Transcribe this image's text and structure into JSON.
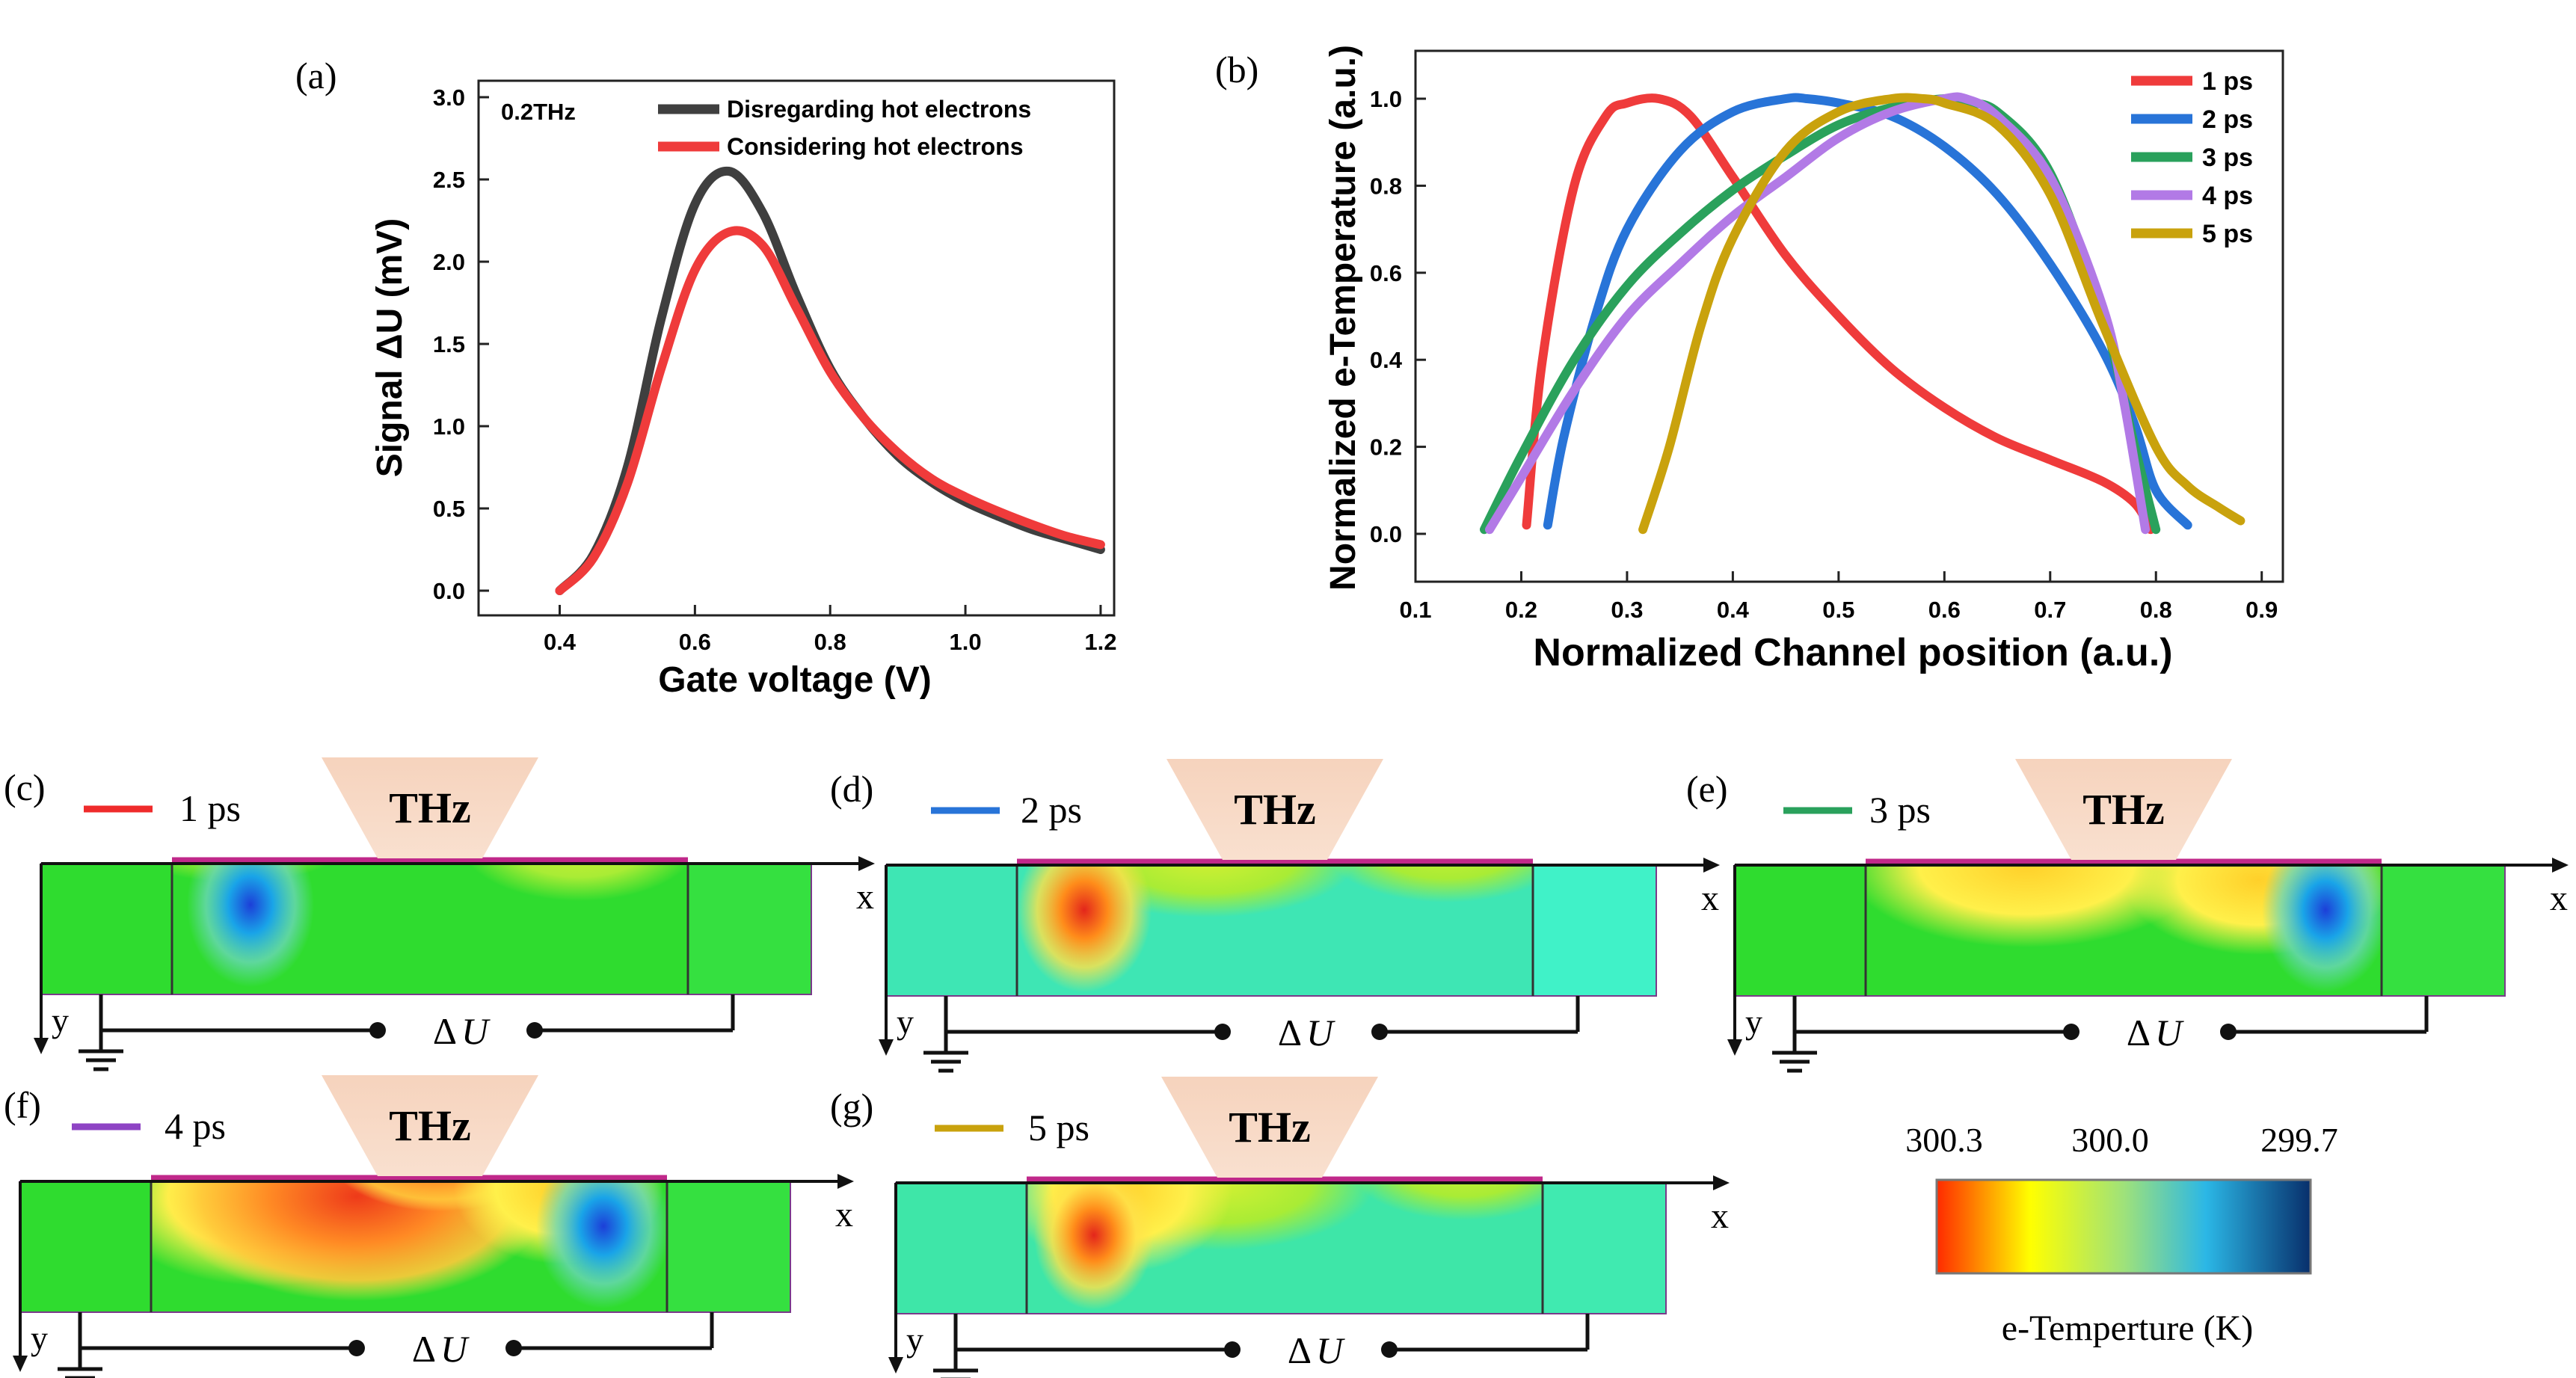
{
  "chart_data": [
    {
      "panel": "(a)",
      "type": "line",
      "annotation": "0.2THz",
      "xlabel": "Gate voltage (V)",
      "ylabel": "Signal ΔU (mV)",
      "xlim": [
        0.28,
        1.22
      ],
      "ylim": [
        -0.15,
        3.1
      ],
      "xticks": [
        "0.4",
        "0.6",
        "0.8",
        "1.0",
        "1.2"
      ],
      "yticks": [
        "0.0",
        "0.5",
        "1.0",
        "1.5",
        "2.0",
        "2.5",
        "3.0"
      ],
      "legend_position": "top-right",
      "series": [
        {
          "name": "Disregarding hot electrons",
          "color": "#3f3f3f",
          "x": [
            0.4,
            0.45,
            0.5,
            0.55,
            0.6,
            0.65,
            0.7,
            0.75,
            0.8,
            0.85,
            0.9,
            0.95,
            1.0,
            1.05,
            1.1,
            1.15,
            1.2
          ],
          "y": [
            0.0,
            0.22,
            0.75,
            1.65,
            2.35,
            2.55,
            2.3,
            1.8,
            1.35,
            1.05,
            0.82,
            0.66,
            0.54,
            0.45,
            0.37,
            0.31,
            0.25
          ]
        },
        {
          "name": "Considering hot electrons",
          "color": "#ef3b3b",
          "x": [
            0.4,
            0.45,
            0.5,
            0.55,
            0.6,
            0.65,
            0.7,
            0.75,
            0.8,
            0.85,
            0.9,
            0.95,
            1.0,
            1.05,
            1.1,
            1.15,
            1.2
          ],
          "y": [
            0.0,
            0.2,
            0.65,
            1.35,
            1.95,
            2.18,
            2.1,
            1.72,
            1.33,
            1.05,
            0.84,
            0.68,
            0.57,
            0.48,
            0.4,
            0.33,
            0.28
          ]
        }
      ]
    },
    {
      "panel": "(b)",
      "type": "line",
      "xlabel": "Normalized Channel position (a.u.)",
      "ylabel": "Normalized e-Temperature (a.u.)",
      "xlim": [
        0.1,
        0.92
      ],
      "ylim": [
        -0.11,
        1.11
      ],
      "xticks": [
        "0.1",
        "0.2",
        "0.3",
        "0.4",
        "0.5",
        "0.6",
        "0.7",
        "0.8",
        "0.9"
      ],
      "yticks": [
        "0.0",
        "0.2",
        "0.4",
        "0.6",
        "0.8",
        "1.0"
      ],
      "legend_position": "top-right",
      "series": [
        {
          "name": "1 ps",
          "color": "#ef3b3b",
          "x": [
            0.205,
            0.22,
            0.25,
            0.28,
            0.3,
            0.33,
            0.36,
            0.4,
            0.45,
            0.5,
            0.55,
            0.6,
            0.65,
            0.7,
            0.75,
            0.78,
            0.795
          ],
          "y": [
            0.02,
            0.4,
            0.8,
            0.96,
            0.99,
            1.0,
            0.96,
            0.82,
            0.64,
            0.5,
            0.38,
            0.29,
            0.22,
            0.17,
            0.12,
            0.07,
            0.01
          ]
        },
        {
          "name": "2 ps",
          "color": "#2874d8",
          "x": [
            0.225,
            0.24,
            0.27,
            0.3,
            0.35,
            0.4,
            0.45,
            0.47,
            0.5,
            0.55,
            0.6,
            0.65,
            0.7,
            0.75,
            0.78,
            0.8,
            0.83
          ],
          "y": [
            0.02,
            0.22,
            0.5,
            0.7,
            0.88,
            0.97,
            1.0,
            1.0,
            0.99,
            0.96,
            0.89,
            0.78,
            0.62,
            0.42,
            0.25,
            0.1,
            0.02
          ]
        },
        {
          "name": "3 ps",
          "color": "#2aa15c",
          "x": [
            0.165,
            0.2,
            0.25,
            0.3,
            0.35,
            0.4,
            0.45,
            0.5,
            0.55,
            0.6,
            0.62,
            0.65,
            0.7,
            0.75,
            0.78,
            0.8
          ],
          "y": [
            0.01,
            0.18,
            0.4,
            0.57,
            0.69,
            0.79,
            0.87,
            0.94,
            0.98,
            1.0,
            0.99,
            0.97,
            0.83,
            0.5,
            0.2,
            0.01
          ]
        },
        {
          "name": "4 ps",
          "color": "#b27ae6",
          "x": [
            0.17,
            0.2,
            0.25,
            0.3,
            0.35,
            0.4,
            0.45,
            0.5,
            0.55,
            0.6,
            0.62,
            0.65,
            0.7,
            0.75,
            0.77,
            0.79
          ],
          "y": [
            0.01,
            0.13,
            0.33,
            0.5,
            0.62,
            0.73,
            0.82,
            0.91,
            0.97,
            1.0,
            1.0,
            0.96,
            0.82,
            0.52,
            0.3,
            0.01
          ]
        },
        {
          "name": "5 ps",
          "color": "#c9a20d",
          "x": [
            0.315,
            0.34,
            0.37,
            0.4,
            0.45,
            0.5,
            0.55,
            0.58,
            0.6,
            0.65,
            0.7,
            0.75,
            0.8,
            0.83,
            0.86,
            0.88
          ],
          "y": [
            0.01,
            0.2,
            0.48,
            0.68,
            0.88,
            0.97,
            1.0,
            1.0,
            0.99,
            0.94,
            0.78,
            0.48,
            0.2,
            0.11,
            0.06,
            0.03
          ]
        }
      ]
    }
  ],
  "panels": [
    {
      "label": "(c)",
      "time": "1 ps",
      "line_color": "#ef2b2b",
      "field": "green with blue spot near lower left",
      "hot_spot": "none"
    },
    {
      "label": "(d)",
      "time": "2 ps",
      "line_color": "#2874d8",
      "field": "green-cyan with red spot near lower left",
      "hot_spot": "left"
    },
    {
      "label": "(e)",
      "time": "3 ps",
      "line_color": "#2aa15c",
      "field": "yellow-green with blue spot near lower right",
      "hot_spot": "center"
    },
    {
      "label": "(f)",
      "time": "4 ps",
      "line_color": "#8e44c4",
      "field": "orange-red center with blue spot near lower right",
      "hot_spot": "center"
    },
    {
      "label": "(g)",
      "time": "5 ps",
      "line_color": "#c9a20d",
      "field": "green-cyan with red spot near lower left",
      "hot_spot": "left"
    }
  ],
  "device": {
    "thz_label": "THz",
    "x_axis": "x",
    "y_axis": "y",
    "signal": "U",
    "signal_prefix": "Δ"
  },
  "colorbar": {
    "ticks": [
      "300.3",
      "300.0",
      "299.7"
    ],
    "label": "e-Temperture (K)",
    "colors": [
      "#ff2a00",
      "#ffff00",
      "#9fe27a",
      "#2bb7e6",
      "#082f6b"
    ]
  }
}
